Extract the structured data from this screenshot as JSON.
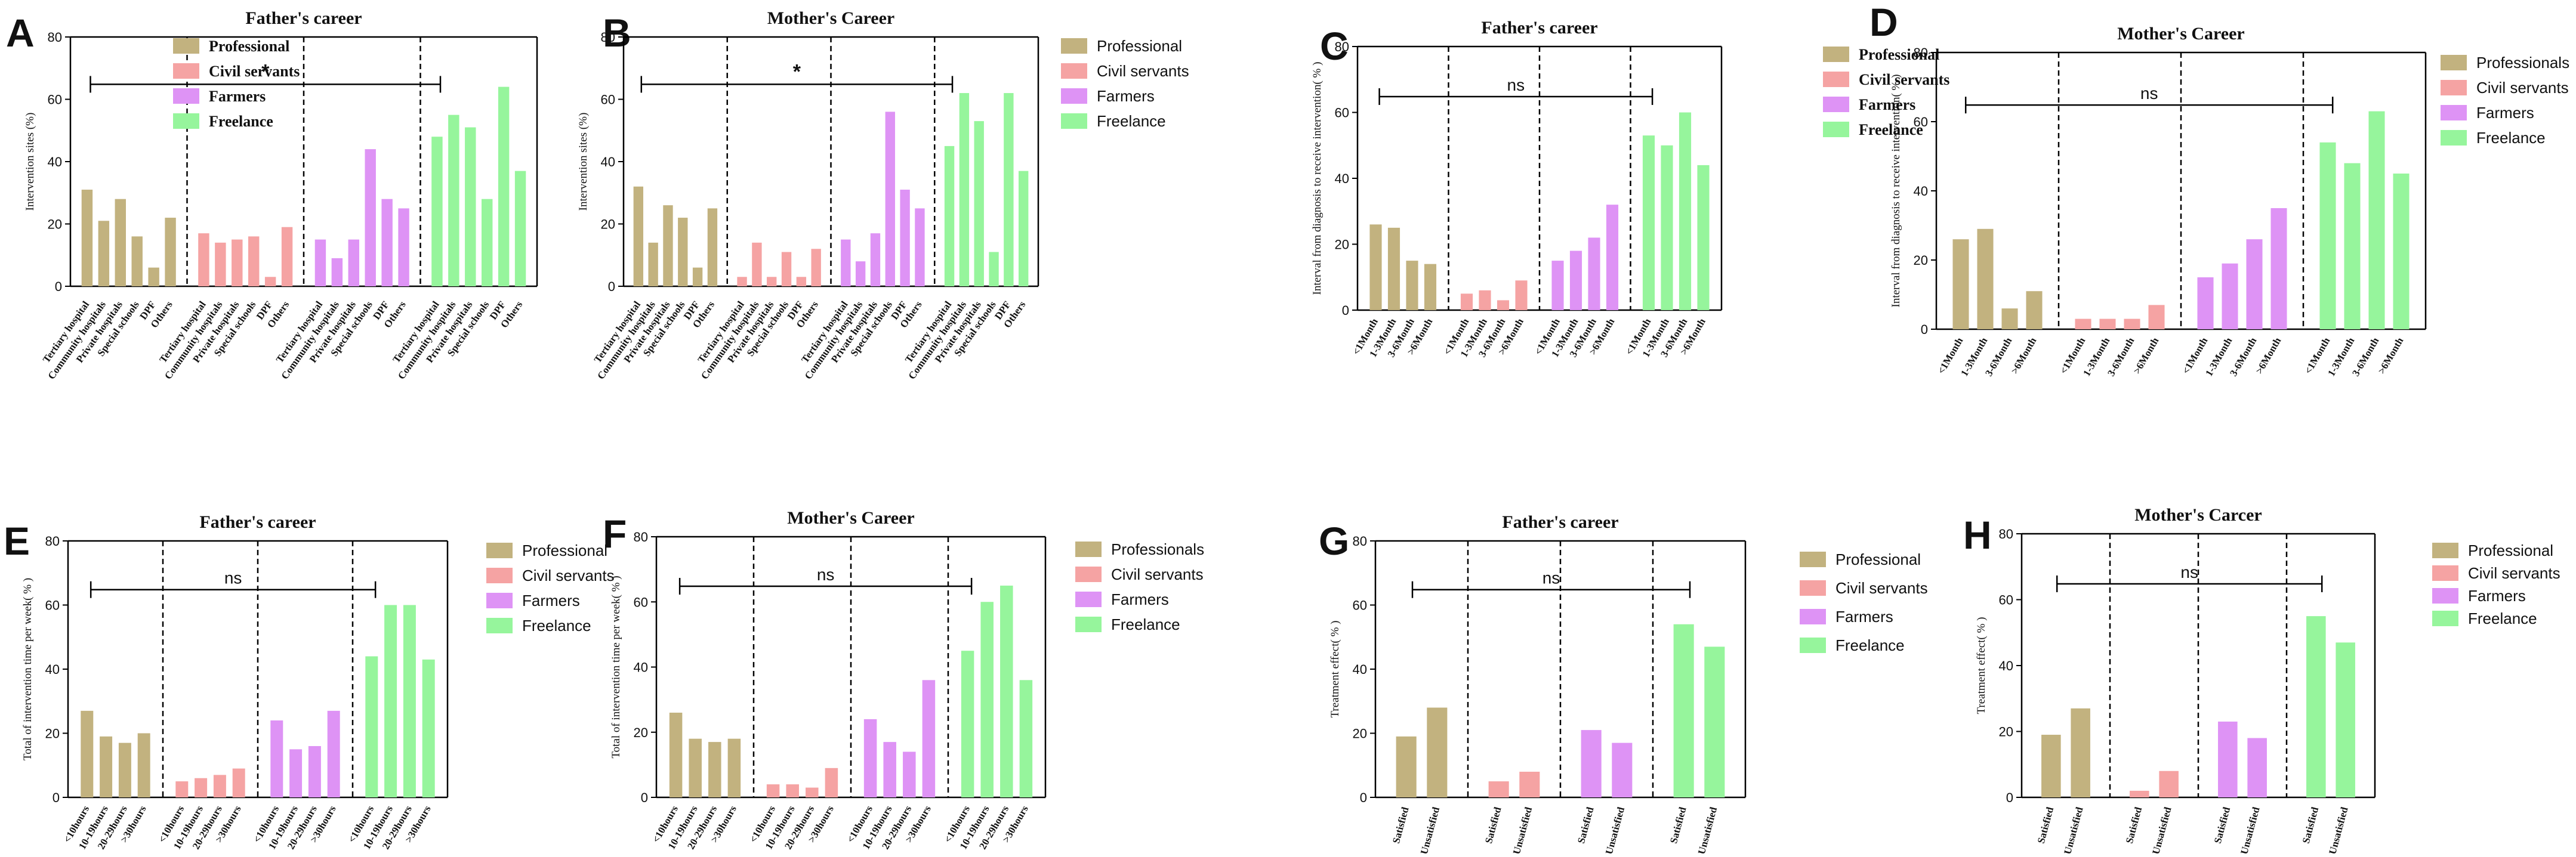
{
  "colors": {
    "Professional": "#c2b27f",
    "Professionals": "#c2b27f",
    "Civil servants": "#f5a3a3",
    "Farmers": "#de93f5",
    "Freelance": "#96f59c"
  },
  "chart_data": [
    {
      "id": "A",
      "type": "bar",
      "title": "Father's career",
      "ylabel": "Intervention sites (%)",
      "ylim": [
        0,
        80
      ],
      "yticks": [
        0,
        20,
        40,
        60,
        80
      ],
      "significance": "*",
      "legend": [
        "Professional",
        "Civil servants",
        "Farmers",
        "Freelance"
      ],
      "categories": [
        "Tertiary hospital",
        "Community hospitals",
        "Private hospitals",
        "Special schools",
        "DPF",
        "Others"
      ],
      "series": [
        {
          "name": "Professional",
          "values": [
            31,
            21,
            28,
            16,
            6,
            22
          ]
        },
        {
          "name": "Civil servants",
          "values": [
            17,
            14,
            15,
            16,
            3,
            19
          ]
        },
        {
          "name": "Farmers",
          "values": [
            15,
            9,
            15,
            44,
            28,
            25
          ]
        },
        {
          "name": "Freelance",
          "values": [
            48,
            55,
            51,
            28,
            64,
            37
          ]
        }
      ]
    },
    {
      "id": "B",
      "type": "bar",
      "title": "Mother's  Career",
      "ylabel": "Intervention sites (%)",
      "ylim": [
        0,
        80
      ],
      "yticks": [
        0,
        20,
        40,
        60,
        80
      ],
      "significance": "*",
      "legend": [
        "Professional",
        "Civil servants",
        "Farmers",
        "Freelance"
      ],
      "categories": [
        "Tertiary hospital",
        "Community hospitals",
        "Private hospitals",
        "Special schools",
        "DPF",
        "Others"
      ],
      "series": [
        {
          "name": "Professional",
          "values": [
            32,
            14,
            26,
            22,
            6,
            25
          ]
        },
        {
          "name": "Civil servants",
          "values": [
            3,
            14,
            3,
            11,
            3,
            12
          ]
        },
        {
          "name": "Farmers",
          "values": [
            15,
            8,
            17,
            56,
            31,
            25
          ]
        },
        {
          "name": "Freelance",
          "values": [
            45,
            62,
            53,
            11,
            62,
            37
          ]
        }
      ]
    },
    {
      "id": "C",
      "type": "bar",
      "title": "Father's career",
      "ylabel": "Interval from diagnosis to receive intervention(  %  )",
      "ylim": [
        0,
        80
      ],
      "yticks": [
        0,
        20,
        40,
        60,
        80
      ],
      "significance": "ns",
      "legend": [
        "Professional",
        "Civil servants",
        "Farmers",
        "Freelance"
      ],
      "categories": [
        "<1Month",
        "1-3Month",
        "3-6Month",
        ">6Month"
      ],
      "series": [
        {
          "name": "Professional",
          "values": [
            26,
            25,
            15,
            14
          ]
        },
        {
          "name": "Civil servants",
          "values": [
            5,
            6,
            3,
            9
          ]
        },
        {
          "name": "Farmers",
          "values": [
            15,
            18,
            22,
            32
          ]
        },
        {
          "name": "Freelance",
          "values": [
            53,
            50,
            60,
            44
          ]
        }
      ]
    },
    {
      "id": "D",
      "type": "bar",
      "title": "Mother's  Career",
      "ylabel": "Interval from diagnosis to receive intervention(  %  )",
      "ylim": [
        0,
        80
      ],
      "yticks": [
        0,
        20,
        40,
        60,
        80
      ],
      "significance": "ns",
      "legend": [
        "Professionals",
        "Civil servants",
        "Farmers",
        "Freelance"
      ],
      "categories": [
        "<1Month",
        "1-3Month",
        "3-6Month",
        ">6Month"
      ],
      "series": [
        {
          "name": "Professionals",
          "values": [
            26,
            29,
            6,
            11
          ]
        },
        {
          "name": "Civil servants",
          "values": [
            3,
            3,
            3,
            7
          ]
        },
        {
          "name": "Farmers",
          "values": [
            15,
            19,
            26,
            35
          ]
        },
        {
          "name": "Freelance",
          "values": [
            54,
            48,
            63,
            45
          ]
        }
      ]
    },
    {
      "id": "E",
      "type": "bar",
      "title": "Father's career",
      "ylabel": "Total of intervention time per week(  %  )",
      "ylim": [
        0,
        80
      ],
      "yticks": [
        0,
        20,
        40,
        60,
        80
      ],
      "significance": "ns",
      "legend": [
        "Professional",
        "Civil servants",
        "Farmers",
        "Freelance"
      ],
      "categories": [
        "<10hours",
        "10-19hours",
        "20-29hours",
        ">30hours"
      ],
      "series": [
        {
          "name": "Professional",
          "values": [
            27,
            19,
            17,
            20
          ]
        },
        {
          "name": "Civil servants",
          "values": [
            5,
            6,
            7,
            9
          ]
        },
        {
          "name": "Farmers",
          "values": [
            24,
            15,
            16,
            27
          ]
        },
        {
          "name": "Freelance",
          "values": [
            44,
            60,
            60,
            43
          ]
        }
      ]
    },
    {
      "id": "F",
      "type": "bar",
      "title": "Mother's  Career",
      "ylabel": "Total of intervention time per week(  %  )",
      "ylim": [
        0,
        80
      ],
      "yticks": [
        0,
        20,
        40,
        60,
        80
      ],
      "significance": "ns",
      "legend": [
        "Professionals",
        "Civil servants",
        "Farmers",
        "Freelance"
      ],
      "categories": [
        "<10hours",
        "10-19hours",
        "20-29hours",
        ">30hours"
      ],
      "series": [
        {
          "name": "Professionals",
          "values": [
            26,
            18,
            17,
            18
          ]
        },
        {
          "name": "Civil servants",
          "values": [
            4,
            4,
            3,
            9
          ]
        },
        {
          "name": "Farmers",
          "values": [
            24,
            17,
            14,
            36
          ]
        },
        {
          "name": "Freelance",
          "values": [
            45,
            60,
            65,
            36
          ]
        }
      ]
    },
    {
      "id": "G",
      "type": "bar",
      "title": "Father's career",
      "ylabel": "Treatment effect(  %  )",
      "ylim": [
        0,
        80
      ],
      "yticks": [
        0,
        20,
        40,
        60,
        80
      ],
      "significance": "ns",
      "legend": [
        "Professional",
        "Civil servants",
        "Farmers",
        "Freelance"
      ],
      "categories": [
        "Satisfied",
        "Unsatisfied"
      ],
      "series": [
        {
          "name": "Professional",
          "values": [
            19,
            28
          ]
        },
        {
          "name": "Civil servants",
          "values": [
            5,
            8
          ]
        },
        {
          "name": "Farmers",
          "values": [
            21,
            17
          ]
        },
        {
          "name": "Freelance",
          "values": [
            54,
            47
          ]
        }
      ]
    },
    {
      "id": "H",
      "type": "bar",
      "title": "Mother's  Carcer",
      "ylabel": "Treatment effect(  %  )",
      "ylim": [
        0,
        80
      ],
      "yticks": [
        0,
        20,
        40,
        60,
        80
      ],
      "significance": "ns",
      "legend": [
        "Professional",
        "Civil servants",
        "Farmers",
        "Freelance"
      ],
      "categories": [
        "Satisfied",
        "Unsatisfied"
      ],
      "series": [
        {
          "name": "Professional",
          "values": [
            19,
            27
          ]
        },
        {
          "name": "Civil servants",
          "values": [
            2,
            8
          ]
        },
        {
          "name": "Farmers",
          "values": [
            23,
            18
          ]
        },
        {
          "name": "Freelance",
          "values": [
            55,
            47
          ]
        }
      ]
    }
  ]
}
